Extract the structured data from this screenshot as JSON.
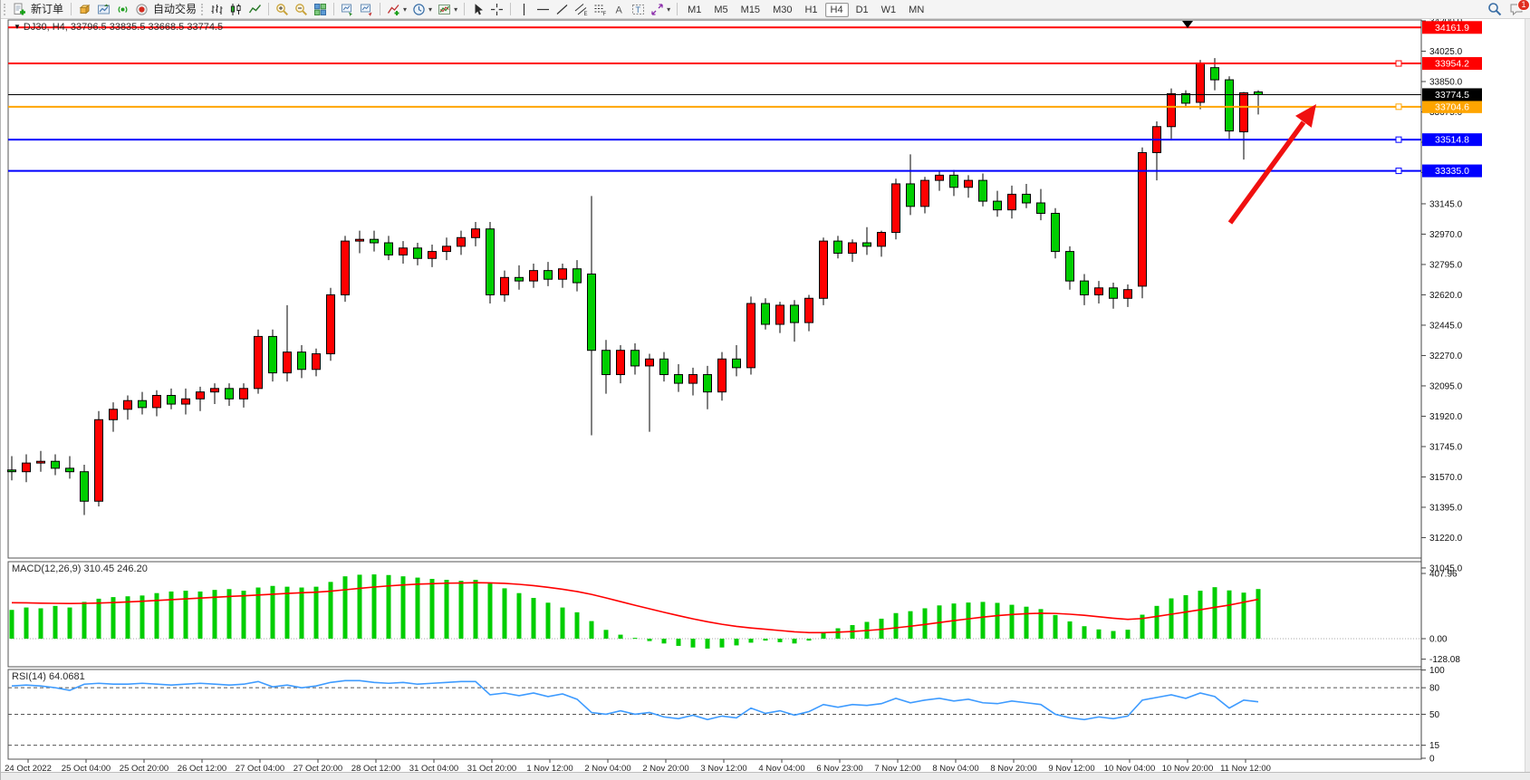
{
  "toolbar": {
    "new_order": "新订单",
    "autotrading": "自动交易",
    "timeframes": [
      "M1",
      "M5",
      "M15",
      "M30",
      "H1",
      "H4",
      "D1",
      "W1",
      "MN"
    ],
    "active_timeframe": "H4",
    "notification_badge": "1",
    "icons": [
      "new-order-icon",
      "market-box-icon",
      "publish-chart-icon",
      "signal-icon",
      "autotrading-icon",
      "bar-chart-icon",
      "candlestick-icon",
      "line-chart-icon",
      "zoom-in-icon",
      "zoom-out-icon",
      "tile-windows-icon",
      "arrange-window-icon",
      "track-window-icon",
      "indicators-icon",
      "periods-icon",
      "templates-icon",
      "cursor-icon",
      "crosshair-icon",
      "vertical-line-icon",
      "horizontal-line-icon",
      "trendline-icon",
      "channel-icon",
      "fibonacci-icon",
      "text-icon",
      "text-label-icon",
      "arrows-icon",
      "search-icon",
      "chat-icon"
    ]
  },
  "chart_header": {
    "dropdown": "▼",
    "text": "DJ30, H4, 33796.5 33835.5 33668.5 33774.5"
  },
  "price_axis": {
    "ticks": [
      "34200.0",
      "34025.0",
      "33850.0",
      "33675.0",
      "33500.0",
      "33325.0",
      "33145.0",
      "32970.0",
      "32795.0",
      "32620.0",
      "32445.0",
      "32270.0",
      "32095.0",
      "31920.0",
      "31745.0",
      "31570.0",
      "31395.0",
      "31220.0",
      "31045.0"
    ]
  },
  "hlines": [
    {
      "price": 34161.9,
      "label": "34161.9",
      "color": "#FF0000",
      "handle": false
    },
    {
      "price": 33954.2,
      "label": "33954.2",
      "color": "#FF0000",
      "handle": true
    },
    {
      "price": 33704.6,
      "label": "33704.6",
      "color": "#FFA500",
      "handle": true
    },
    {
      "price": 33514.8,
      "label": "33514.8",
      "color": "#0000FF",
      "handle": true
    },
    {
      "price": 33335.0,
      "label": "33335.0",
      "color": "#0000FF",
      "handle": true
    }
  ],
  "current_price": {
    "value": 33774.5,
    "label": "33774.5",
    "color": "#000000"
  },
  "time_axis": [
    "24 Oct 2022",
    "25 Oct 04:00",
    "25 Oct 20:00",
    "26 Oct 12:00",
    "27 Oct 04:00",
    "27 Oct 20:00",
    "28 Oct 12:00",
    "31 Oct 04:00",
    "31 Oct 20:00",
    "1 Nov 12:00",
    "2 Nov 04:00",
    "2 Nov 20:00",
    "3 Nov 12:00",
    "4 Nov 04:00",
    "6 Nov 23:00",
    "7 Nov 12:00",
    "8 Nov 04:00",
    "8 Nov 20:00",
    "9 Nov 12:00",
    "10 Nov 04:00",
    "10 Nov 20:00",
    "11 Nov 12:00"
  ],
  "chart_data": {
    "type": "candlestick",
    "symbol": "DJ30",
    "period": "H4",
    "bull_color": "#FF0000",
    "bear_color": "#00CE00",
    "wick_color": "#000000",
    "ylim": [
      31110,
      34205
    ],
    "annotation": {
      "type": "arrow-up-right",
      "color": "#F01010"
    },
    "candles": [
      [
        31610,
        31690,
        31550,
        31600
      ],
      [
        31600,
        31700,
        31540,
        31650
      ],
      [
        31650,
        31720,
        31600,
        31660
      ],
      [
        31660,
        31700,
        31580,
        31620
      ],
      [
        31620,
        31690,
        31560,
        31600
      ],
      [
        31600,
        31640,
        31350,
        31430
      ],
      [
        31430,
        31950,
        31400,
        31900
      ],
      [
        31900,
        32000,
        31830,
        31960
      ],
      [
        31960,
        32040,
        31900,
        32010
      ],
      [
        32010,
        32060,
        31930,
        31970
      ],
      [
        31970,
        32070,
        31920,
        32040
      ],
      [
        32040,
        32080,
        31960,
        31990
      ],
      [
        31990,
        32080,
        31930,
        32020
      ],
      [
        32020,
        32090,
        31950,
        32060
      ],
      [
        32060,
        32110,
        31990,
        32080
      ],
      [
        32080,
        32110,
        31980,
        32020
      ],
      [
        32020,
        32110,
        31970,
        32080
      ],
      [
        32080,
        32420,
        32050,
        32380
      ],
      [
        32380,
        32420,
        32120,
        32170
      ],
      [
        32170,
        32560,
        32120,
        32290
      ],
      [
        32290,
        32330,
        32140,
        32190
      ],
      [
        32190,
        32310,
        32150,
        32280
      ],
      [
        32280,
        32660,
        32240,
        32620
      ],
      [
        32620,
        32960,
        32580,
        32930
      ],
      [
        32930,
        32990,
        32860,
        32940
      ],
      [
        32940,
        32990,
        32870,
        32920
      ],
      [
        32920,
        32960,
        32820,
        32850
      ],
      [
        32850,
        32930,
        32800,
        32890
      ],
      [
        32890,
        32920,
        32790,
        32830
      ],
      [
        32830,
        32910,
        32780,
        32870
      ],
      [
        32870,
        32950,
        32820,
        32900
      ],
      [
        32900,
        32990,
        32850,
        32950
      ],
      [
        32950,
        33040,
        32900,
        33000
      ],
      [
        33000,
        33040,
        32570,
        32620
      ],
      [
        32620,
        32760,
        32580,
        32720
      ],
      [
        32720,
        32790,
        32650,
        32700
      ],
      [
        32700,
        32800,
        32660,
        32760
      ],
      [
        32760,
        32810,
        32670,
        32710
      ],
      [
        32710,
        32800,
        32660,
        32770
      ],
      [
        32770,
        32820,
        32640,
        32690
      ],
      [
        32740,
        33190,
        31810,
        32300
      ],
      [
        32300,
        32360,
        32050,
        32160
      ],
      [
        32160,
        32330,
        32110,
        32300
      ],
      [
        32300,
        32340,
        32160,
        32210
      ],
      [
        32210,
        32280,
        31830,
        32250
      ],
      [
        32250,
        32290,
        32120,
        32160
      ],
      [
        32160,
        32220,
        32060,
        32110
      ],
      [
        32110,
        32200,
        32040,
        32160
      ],
      [
        32160,
        32210,
        31960,
        32060
      ],
      [
        32060,
        32290,
        32010,
        32250
      ],
      [
        32250,
        32330,
        32150,
        32200
      ],
      [
        32200,
        32610,
        32160,
        32570
      ],
      [
        32570,
        32600,
        32420,
        32450
      ],
      [
        32450,
        32580,
        32400,
        32560
      ],
      [
        32560,
        32590,
        32350,
        32460
      ],
      [
        32460,
        32620,
        32410,
        32600
      ],
      [
        32600,
        32950,
        32560,
        32930
      ],
      [
        32930,
        32960,
        32830,
        32860
      ],
      [
        32860,
        32940,
        32810,
        32920
      ],
      [
        32920,
        33010,
        32850,
        32900
      ],
      [
        32900,
        32990,
        32840,
        32980
      ],
      [
        32980,
        33290,
        32940,
        33260
      ],
      [
        33260,
        33430,
        33080,
        33130
      ],
      [
        33130,
        33300,
        33090,
        33280
      ],
      [
        33280,
        33330,
        33220,
        33310
      ],
      [
        33310,
        33340,
        33190,
        33240
      ],
      [
        33240,
        33310,
        33180,
        33280
      ],
      [
        33280,
        33320,
        33130,
        33160
      ],
      [
        33160,
        33220,
        33070,
        33110
      ],
      [
        33110,
        33250,
        33060,
        33200
      ],
      [
        33200,
        33260,
        33120,
        33150
      ],
      [
        33150,
        33230,
        33050,
        33090
      ],
      [
        33090,
        33120,
        32830,
        32870
      ],
      [
        32870,
        32900,
        32650,
        32700
      ],
      [
        32700,
        32740,
        32560,
        32620
      ],
      [
        32620,
        32700,
        32570,
        32660
      ],
      [
        32660,
        32690,
        32540,
        32600
      ],
      [
        32600,
        32680,
        32550,
        32650
      ],
      [
        32670,
        33470,
        32600,
        33440
      ],
      [
        33440,
        33620,
        33280,
        33590
      ],
      [
        33590,
        33810,
        33520,
        33780
      ],
      [
        33780,
        33800,
        33700,
        33725
      ],
      [
        33730,
        33975,
        33690,
        33954
      ],
      [
        33930,
        33985,
        33800,
        33860
      ],
      [
        33860,
        33880,
        33520,
        33565
      ],
      [
        33560,
        33790,
        33400,
        33785
      ],
      [
        33790,
        33800,
        33660,
        33774.5
      ]
    ]
  },
  "macd": {
    "label": "MACD(12,26,9) 310.45 246.20",
    "params": "12,26,9",
    "main_value": "310.45",
    "signal_value": "246.20",
    "axis_labels": [
      {
        "v": 407.96,
        "label": "407.96"
      },
      {
        "v": 0,
        "label": "0.00"
      },
      {
        "v": -128.08,
        "label": "-128.08"
      }
    ],
    "hist_color": "#00CE00",
    "signal_color": "#FF0000",
    "histogram": [
      180,
      195,
      190,
      205,
      195,
      230,
      250,
      260,
      265,
      270,
      285,
      295,
      300,
      295,
      305,
      310,
      300,
      320,
      330,
      325,
      320,
      325,
      355,
      390,
      400,
      402,
      398,
      390,
      382,
      374,
      368,
      362,
      368,
      345,
      315,
      285,
      255,
      225,
      195,
      165,
      110,
      55,
      25,
      5,
      -15,
      -30,
      -45,
      -55,
      -62,
      -55,
      -42,
      -25,
      -12,
      -22,
      -30,
      -12,
      35,
      65,
      85,
      105,
      125,
      160,
      172,
      190,
      208,
      220,
      226,
      230,
      224,
      212,
      200,
      185,
      148,
      108,
      78,
      58,
      48,
      56,
      150,
      205,
      252,
      272,
      300,
      322,
      302,
      288,
      310.45
    ],
    "signal": [
      225,
      224,
      222,
      221,
      220,
      221,
      223,
      226,
      230,
      234,
      239,
      244,
      249,
      254,
      259,
      264,
      268,
      273,
      278,
      283,
      287,
      291,
      297,
      306,
      315,
      323,
      330,
      336,
      341,
      344,
      347,
      348,
      350,
      349,
      346,
      340,
      332,
      321,
      309,
      295,
      277,
      255,
      232,
      209,
      187,
      165,
      144,
      124,
      106,
      90,
      77,
      67,
      59,
      51,
      43,
      38,
      38,
      41,
      45,
      51,
      58,
      68,
      78,
      89,
      101,
      113,
      124,
      135,
      144,
      151,
      156,
      159,
      158,
      153,
      146,
      137,
      128,
      121,
      126,
      139,
      153,
      167,
      181,
      196,
      210,
      228,
      246.2
    ]
  },
  "rsi": {
    "label": "RSI(14) 64.0681",
    "params": "14",
    "value": "64.0681",
    "color": "#3E9BFF",
    "levels": [
      80,
      50,
      15
    ],
    "axis_labels": [
      {
        "v": 100,
        "label": "100"
      },
      {
        "v": 80,
        "label": "80"
      },
      {
        "v": 50,
        "label": "50"
      },
      {
        "v": 15,
        "label": "15"
      },
      {
        "v": 0,
        "label": "0"
      }
    ],
    "values": [
      82,
      83,
      82,
      80,
      77,
      84,
      85,
      84,
      84,
      85,
      84,
      83,
      84,
      85,
      84,
      83,
      84,
      87,
      81,
      83,
      80,
      82,
      86,
      88,
      88,
      86,
      85,
      86,
      84,
      85,
      86,
      87,
      87,
      72,
      74,
      71,
      74,
      70,
      73,
      67,
      52,
      50,
      54,
      50,
      52,
      47,
      45,
      49,
      44,
      48,
      46,
      57,
      51,
      54,
      49,
      53,
      61,
      58,
      61,
      60,
      62,
      68,
      63,
      66,
      68,
      65,
      67,
      63,
      62,
      65,
      63,
      61,
      50,
      46,
      44,
      47,
      45,
      48,
      66,
      69,
      72,
      68,
      74,
      70,
      57,
      66,
      64.07
    ]
  }
}
